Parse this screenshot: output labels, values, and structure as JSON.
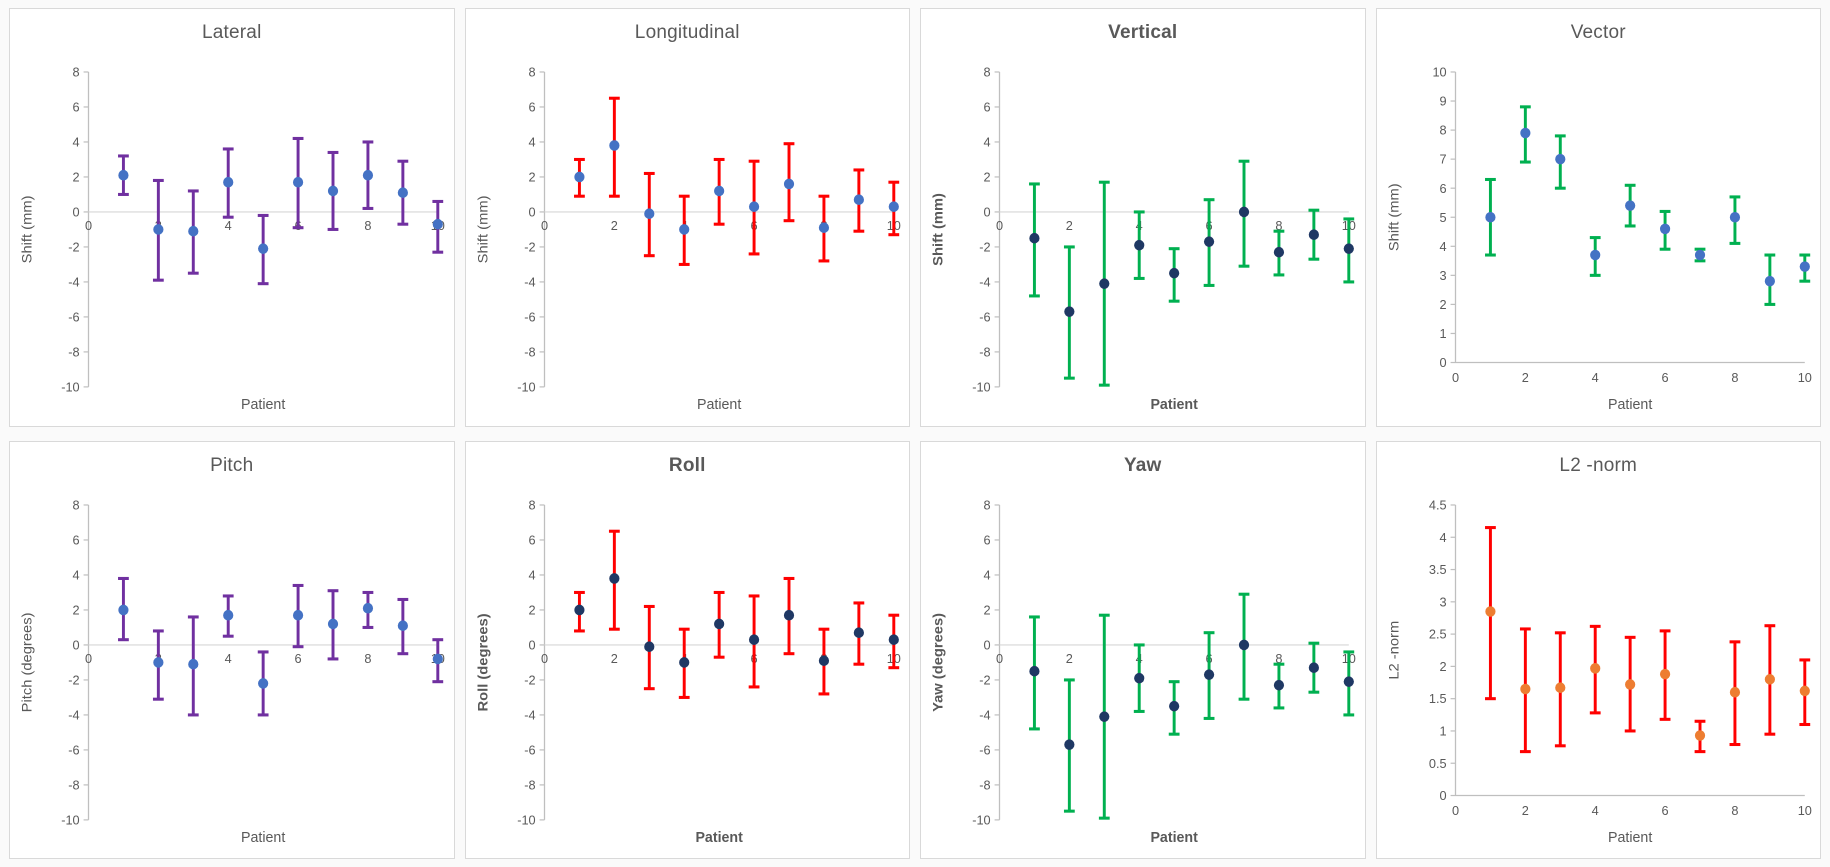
{
  "page": {
    "background": "#ffffff",
    "panel_border_color": "#d9d9d9",
    "axis_line_color": "#bfbfbf",
    "gridline_color": "#d6d6d6",
    "text_color": "#595959"
  },
  "chart_data": [
    {
      "type": "scatter",
      "title": "Lateral",
      "bold": false,
      "xlabel": "Patient",
      "ylabel": "Shift (mm)",
      "xlim": [
        0,
        10
      ],
      "ylim": [
        -10,
        8
      ],
      "xtick_step": 2,
      "ytick_step": 2,
      "legend": "none",
      "grid": "zero-line-only",
      "marker_color": "#4472c4",
      "error_color": "#7030a0",
      "x": [
        1,
        2,
        3,
        4,
        5,
        6,
        7,
        8,
        9,
        10
      ],
      "y": [
        2.1,
        -1.0,
        -1.1,
        1.7,
        -2.1,
        1.7,
        1.2,
        2.1,
        1.1,
        -0.7
      ],
      "y_low": [
        1.0,
        -3.9,
        -3.5,
        -0.3,
        -4.1,
        -0.9,
        -1.0,
        0.2,
        -0.7,
        -2.3
      ],
      "y_high": [
        3.2,
        1.8,
        1.2,
        3.6,
        -0.2,
        4.2,
        3.4,
        4.0,
        2.9,
        0.6
      ]
    },
    {
      "type": "scatter",
      "title": "Longitudinal",
      "bold": false,
      "xlabel": "Patient",
      "ylabel": "Shift (mm)",
      "xlim": [
        0,
        10
      ],
      "ylim": [
        -10,
        8
      ],
      "xtick_step": 2,
      "ytick_step": 2,
      "legend": "none",
      "grid": "zero-line-only",
      "marker_color": "#4472c4",
      "error_color": "#ff0000",
      "x": [
        1,
        2,
        3,
        4,
        5,
        6,
        7,
        8,
        9,
        10
      ],
      "y": [
        2.0,
        3.8,
        -0.1,
        -1.0,
        1.2,
        0.3,
        1.6,
        -0.9,
        0.7,
        0.3
      ],
      "y_low": [
        0.9,
        0.9,
        -2.5,
        -3.0,
        -0.7,
        -2.4,
        -0.5,
        -2.8,
        -1.1,
        -1.3
      ],
      "y_high": [
        3.0,
        6.5,
        2.2,
        0.9,
        3.0,
        2.9,
        3.9,
        0.9,
        2.4,
        1.7
      ]
    },
    {
      "type": "scatter",
      "title": "Vertical",
      "bold": true,
      "xlabel": "Patient",
      "ylabel": "Shift (mm)",
      "xlim": [
        0,
        10
      ],
      "ylim": [
        -10,
        8
      ],
      "xtick_step": 2,
      "ytick_step": 2,
      "legend": "none",
      "grid": "zero-line-only",
      "marker_color": "#1f3864",
      "error_color": "#00b050",
      "x": [
        1,
        2,
        3,
        4,
        5,
        6,
        7,
        8,
        9,
        10
      ],
      "y": [
        -1.5,
        -5.7,
        -4.1,
        -1.9,
        -3.5,
        -1.7,
        0.0,
        -2.3,
        -1.3,
        -2.1
      ],
      "y_low": [
        -4.8,
        -9.5,
        -9.9,
        -3.8,
        -5.1,
        -4.2,
        -3.1,
        -3.6,
        -2.7,
        -4.0
      ],
      "y_high": [
        1.6,
        -2.0,
        1.7,
        0.0,
        -2.1,
        0.7,
        2.9,
        -1.1,
        0.1,
        -0.4
      ]
    },
    {
      "type": "scatter",
      "title": "Vector",
      "bold": false,
      "xlabel": "Patient",
      "ylabel": "Shift (mm)",
      "xlim": [
        0,
        10
      ],
      "ylim": [
        0,
        10
      ],
      "xtick_step": 2,
      "ytick_step": 1,
      "legend": "none",
      "grid": "none",
      "marker_color": "#4472c4",
      "error_color": "#00b050",
      "x": [
        1,
        2,
        3,
        4,
        5,
        6,
        7,
        8,
        9,
        10
      ],
      "y": [
        5.0,
        7.9,
        7.0,
        3.7,
        5.4,
        4.6,
        3.7,
        5.0,
        2.8,
        3.3
      ],
      "y_low": [
        3.7,
        6.9,
        6.0,
        3.0,
        4.7,
        3.9,
        3.5,
        4.1,
        2.0,
        2.8
      ],
      "y_high": [
        6.3,
        8.8,
        7.8,
        4.3,
        6.1,
        5.2,
        3.9,
        5.7,
        3.7,
        3.7
      ]
    },
    {
      "type": "scatter",
      "title": "Pitch",
      "bold": false,
      "xlabel": "Patient",
      "ylabel": "Pitch (degrees)",
      "xlim": [
        0,
        10
      ],
      "ylim": [
        -10,
        8
      ],
      "xtick_step": 2,
      "ytick_step": 2,
      "legend": "none",
      "grid": "zero-line-only",
      "marker_color": "#4472c4",
      "error_color": "#7030a0",
      "x": [
        1,
        2,
        3,
        4,
        5,
        6,
        7,
        8,
        9,
        10
      ],
      "y": [
        2.0,
        -1.0,
        -1.1,
        1.7,
        -2.2,
        1.7,
        1.2,
        2.1,
        1.1,
        -0.8
      ],
      "y_low": [
        0.3,
        -3.1,
        -4.0,
        0.5,
        -4.0,
        -0.1,
        -0.8,
        1.0,
        -0.5,
        -2.1
      ],
      "y_high": [
        3.8,
        0.8,
        1.6,
        2.8,
        -0.4,
        3.4,
        3.1,
        3.0,
        2.6,
        0.3
      ]
    },
    {
      "type": "scatter",
      "title": "Roll",
      "bold": true,
      "xlabel": "Patient",
      "ylabel": "Roll (degrees)",
      "xlim": [
        0,
        10
      ],
      "ylim": [
        -10,
        8
      ],
      "xtick_step": 2,
      "ytick_step": 2,
      "legend": "none",
      "grid": "zero-line-only",
      "marker_color": "#1f3864",
      "error_color": "#ff0000",
      "x": [
        1,
        2,
        3,
        4,
        5,
        6,
        7,
        8,
        9,
        10
      ],
      "y": [
        2.0,
        3.8,
        -0.1,
        -1.0,
        1.2,
        0.3,
        1.7,
        -0.9,
        0.7,
        0.3
      ],
      "y_low": [
        0.8,
        0.9,
        -2.5,
        -3.0,
        -0.7,
        -2.4,
        -0.5,
        -2.8,
        -1.1,
        -1.3
      ],
      "y_high": [
        3.0,
        6.5,
        2.2,
        0.9,
        3.0,
        2.8,
        3.8,
        0.9,
        2.4,
        1.7
      ]
    },
    {
      "type": "scatter",
      "title": "Yaw",
      "bold": true,
      "xlabel": "Patient",
      "ylabel": "Yaw (degrees)",
      "xlim": [
        0,
        10
      ],
      "ylim": [
        -10,
        8
      ],
      "xtick_step": 2,
      "ytick_step": 2,
      "legend": "none",
      "grid": "zero-line-only",
      "marker_color": "#1f3864",
      "error_color": "#00b050",
      "x": [
        1,
        2,
        3,
        4,
        5,
        6,
        7,
        8,
        9,
        10
      ],
      "y": [
        -1.5,
        -5.7,
        -4.1,
        -1.9,
        -3.5,
        -1.7,
        0.0,
        -2.3,
        -1.3,
        -2.1
      ],
      "y_low": [
        -4.8,
        -9.5,
        -9.9,
        -3.8,
        -5.1,
        -4.2,
        -3.1,
        -3.6,
        -2.7,
        -4.0
      ],
      "y_high": [
        1.6,
        -2.0,
        1.7,
        0.0,
        -2.1,
        0.7,
        2.9,
        -1.1,
        0.1,
        -0.4
      ]
    },
    {
      "type": "scatter",
      "title": "L2 -norm",
      "bold": false,
      "xlabel": "Patient",
      "ylabel": "L2 -norm",
      "xlim": [
        0,
        10
      ],
      "ylim": [
        0,
        4.5
      ],
      "xtick_step": 2,
      "ytick_step": 0.5,
      "legend": "none",
      "grid": "none",
      "marker_color": "#ed7d31",
      "error_color": "#ff0000",
      "x": [
        1,
        2,
        3,
        4,
        5,
        6,
        7,
        8,
        9,
        10
      ],
      "y": [
        2.85,
        1.65,
        1.67,
        1.97,
        1.72,
        1.88,
        0.93,
        1.6,
        1.8,
        1.62
      ],
      "y_low": [
        1.5,
        0.68,
        0.77,
        1.28,
        1.0,
        1.18,
        0.68,
        0.79,
        0.95,
        1.1
      ],
      "y_high": [
        4.15,
        2.58,
        2.52,
        2.62,
        2.45,
        2.55,
        1.15,
        2.38,
        2.63,
        2.1
      ]
    }
  ]
}
